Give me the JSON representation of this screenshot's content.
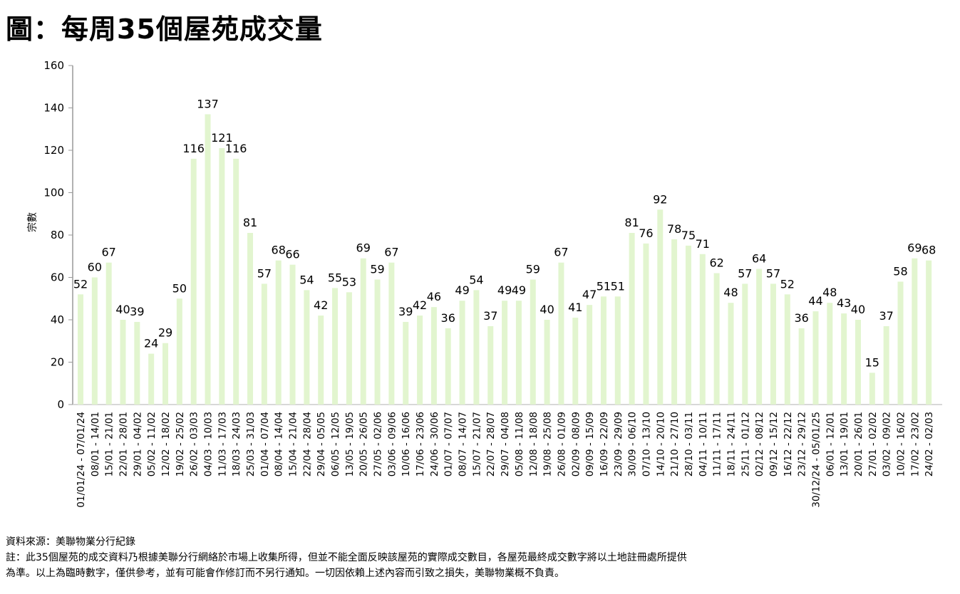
{
  "title": "圖：每周35個屋苑成交量",
  "notes": {
    "source": "資料來源：美聯物業分行紀錄",
    "line1": "註：此35個屋苑的成交資料乃根據美聯分行網絡於市場上收集所得，但並不能全面反映該屋苑的實際成交數目，各屋苑最終成交數字將以土地註冊處所提供",
    "line2": "為準。以上為臨時數字，僅供參考，並有可能會作修訂而不另行通知。一切因依賴上述內容而引致之損失，美聯物業概不負責。"
  },
  "chart_data": {
    "type": "bar",
    "title": "圖：每周35個屋苑成交量",
    "xlabel": "",
    "ylabel": "宗數",
    "ylim": [
      0,
      160
    ],
    "yticks": [
      0,
      20,
      40,
      60,
      80,
      100,
      120,
      140,
      160
    ],
    "grid": false,
    "bar_color": "#e2f5cf",
    "data_labels": true,
    "categories": [
      "01/01/24 - 07/01/24",
      "08/01 - 14/01",
      "15/01 - 21/01",
      "22/01 - 28/01",
      "29/01 - 04/02",
      "05/02 - 11/02",
      "12/02 - 18/02",
      "19/02 - 25/02",
      "26/02 - 03/03",
      "04/03 - 10/03",
      "11/03 - 17/03",
      "18/03 - 24/03",
      "25/03 - 31/03",
      "01/04 - 07/04",
      "08/04 - 14/04",
      "15/04 - 21/04",
      "22/04 - 28/04",
      "29/04 - 05/05",
      "06/05 - 12/05",
      "13/05 - 19/05",
      "20/05 - 26/05",
      "27/05 - 02/06",
      "03/06 - 09/06",
      "10/06 - 16/06",
      "17/06 - 23/06",
      "24/06 - 30/06",
      "01/07 - 07/07",
      "08/07 - 14/07",
      "15/07 - 21/07",
      "22/07 - 28/07",
      "29/07 - 04/08",
      "05/08 - 11/08",
      "12/08 - 18/08",
      "19/08 - 25/08",
      "26/08 - 01/09",
      "02/09 - 08/09",
      "09/09 - 15/09",
      "16/09 - 22/09",
      "23/09 - 29/09",
      "30/09 - 06/10",
      "07/10 - 13/10",
      "14/10 - 20/10",
      "21/10 - 27/10",
      "28/10 - 03/11",
      "04/11 - 10/11",
      "11/11 - 17/11",
      "18/11 - 24/11",
      "25/11 - 01/12",
      "02/12 - 08/12",
      "09/12 - 15/12",
      "16/12 - 22/12",
      "23/12 - 29/12",
      "30/12/24 - 05/01/25",
      "06/01 - 12/01",
      "13/01 - 19/01",
      "20/01 - 26/01",
      "27/01 - 02/02",
      "03/02 - 09/02",
      "10/02 - 16/02",
      "17/02 - 23/02",
      "24/02 - 02/03"
    ],
    "values": [
      52,
      60,
      67,
      40,
      39,
      24,
      29,
      50,
      116,
      137,
      121,
      116,
      81,
      57,
      68,
      66,
      54,
      42,
      55,
      53,
      69,
      59,
      67,
      39,
      42,
      46,
      36,
      49,
      54,
      37,
      49,
      49,
      59,
      40,
      67,
      41,
      47,
      51,
      51,
      81,
      76,
      92,
      78,
      75,
      71,
      62,
      48,
      57,
      64,
      57,
      52,
      36,
      44,
      48,
      43,
      40,
      15,
      37,
      58,
      69,
      68
    ]
  }
}
